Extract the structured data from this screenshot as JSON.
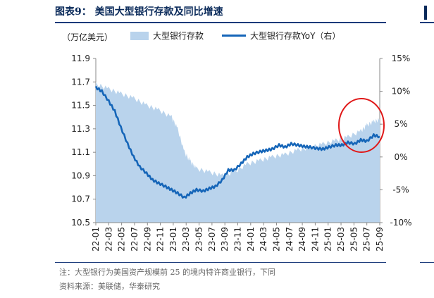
{
  "figure": {
    "title": "图表9： 美国大型银行存款及同比增速",
    "note": "注：大型银行为美国资产规模前 25 的境内特许商业银行，下同",
    "source": "资料来源：美联储，华泰研究"
  },
  "chart_data": {
    "type": "area+line",
    "unit_label": "（万亿美元）",
    "legend_position": "top",
    "grid": false,
    "x_ticks": [
      "22-01",
      "22-03",
      "22-05",
      "22-07",
      "22-09",
      "22-11",
      "23-01",
      "23-03",
      "23-05",
      "23-07",
      "23-09",
      "23-11",
      "24-01",
      "24-03",
      "24-05",
      "24-07",
      "24-09",
      "24-11",
      "25-01",
      "25-03",
      "25-05",
      "25-07",
      "25-09"
    ],
    "y_left": {
      "ylim": [
        10.5,
        11.9
      ],
      "ticks": [
        "11.9",
        "11.7",
        "11.5",
        "11.3",
        "11.1",
        "10.9",
        "10.7",
        "10.5"
      ]
    },
    "y_right": {
      "ylim": [
        -10,
        15
      ],
      "ticks": [
        "15%",
        "10%",
        "5%",
        "0%",
        "-5%",
        "-10%"
      ]
    },
    "series": [
      {
        "name": "大型银行存款",
        "axis": "left",
        "kind": "area",
        "color": "#b9d3ec",
        "x": [
          2022.0,
          2022.17,
          2022.33,
          2022.5,
          2022.67,
          2022.83,
          2023.0,
          2023.08,
          2023.17,
          2023.25,
          2023.33,
          2023.5,
          2023.67,
          2023.83,
          2024.0,
          2024.17,
          2024.33,
          2024.5,
          2024.67,
          2024.83,
          2025.0,
          2025.17,
          2025.33,
          2025.5,
          2025.58,
          2025.67,
          2025.75
        ],
        "values": [
          11.68,
          11.64,
          11.6,
          11.56,
          11.5,
          11.46,
          11.4,
          11.3,
          11.1,
          11.02,
          10.96,
          10.93,
          10.9,
          10.93,
          11.0,
          11.03,
          11.06,
          11.08,
          11.12,
          11.14,
          11.17,
          11.2,
          11.23,
          11.28,
          11.33,
          11.36,
          11.38
        ]
      },
      {
        "name": "大型银行存款YoY（右）",
        "axis": "right",
        "kind": "line",
        "color": "#1565b8",
        "x": [
          2022.0,
          2022.08,
          2022.17,
          2022.25,
          2022.33,
          2022.42,
          2022.5,
          2022.58,
          2022.67,
          2022.75,
          2022.83,
          2022.92,
          2023.0,
          2023.08,
          2023.17,
          2023.25,
          2023.33,
          2023.42,
          2023.5,
          2023.58,
          2023.67,
          2023.75,
          2023.83,
          2023.92,
          2024.0,
          2024.08,
          2024.17,
          2024.25,
          2024.33,
          2024.42,
          2024.5,
          2024.58,
          2024.67,
          2024.75,
          2024.83,
          2024.92,
          2025.0,
          2025.08,
          2025.17,
          2025.25,
          2025.33,
          2025.42,
          2025.5,
          2025.58,
          2025.67,
          2025.75
        ],
        "values": [
          10.6,
          10.0,
          8.5,
          7.0,
          4.5,
          2.0,
          0.0,
          -1.5,
          -2.5,
          -3.5,
          -4.0,
          -4.5,
          -5.0,
          -5.5,
          -6.2,
          -5.5,
          -5.0,
          -5.2,
          -4.8,
          -4.5,
          -3.5,
          -2.0,
          -2.0,
          -1.0,
          0.0,
          0.5,
          0.8,
          1.0,
          1.2,
          1.8,
          1.5,
          2.0,
          1.8,
          1.6,
          1.5,
          1.3,
          1.2,
          1.5,
          1.8,
          1.8,
          2.2,
          2.0,
          2.6,
          2.4,
          3.3,
          3.1
        ]
      }
    ],
    "annotation": "red-ellipse"
  }
}
